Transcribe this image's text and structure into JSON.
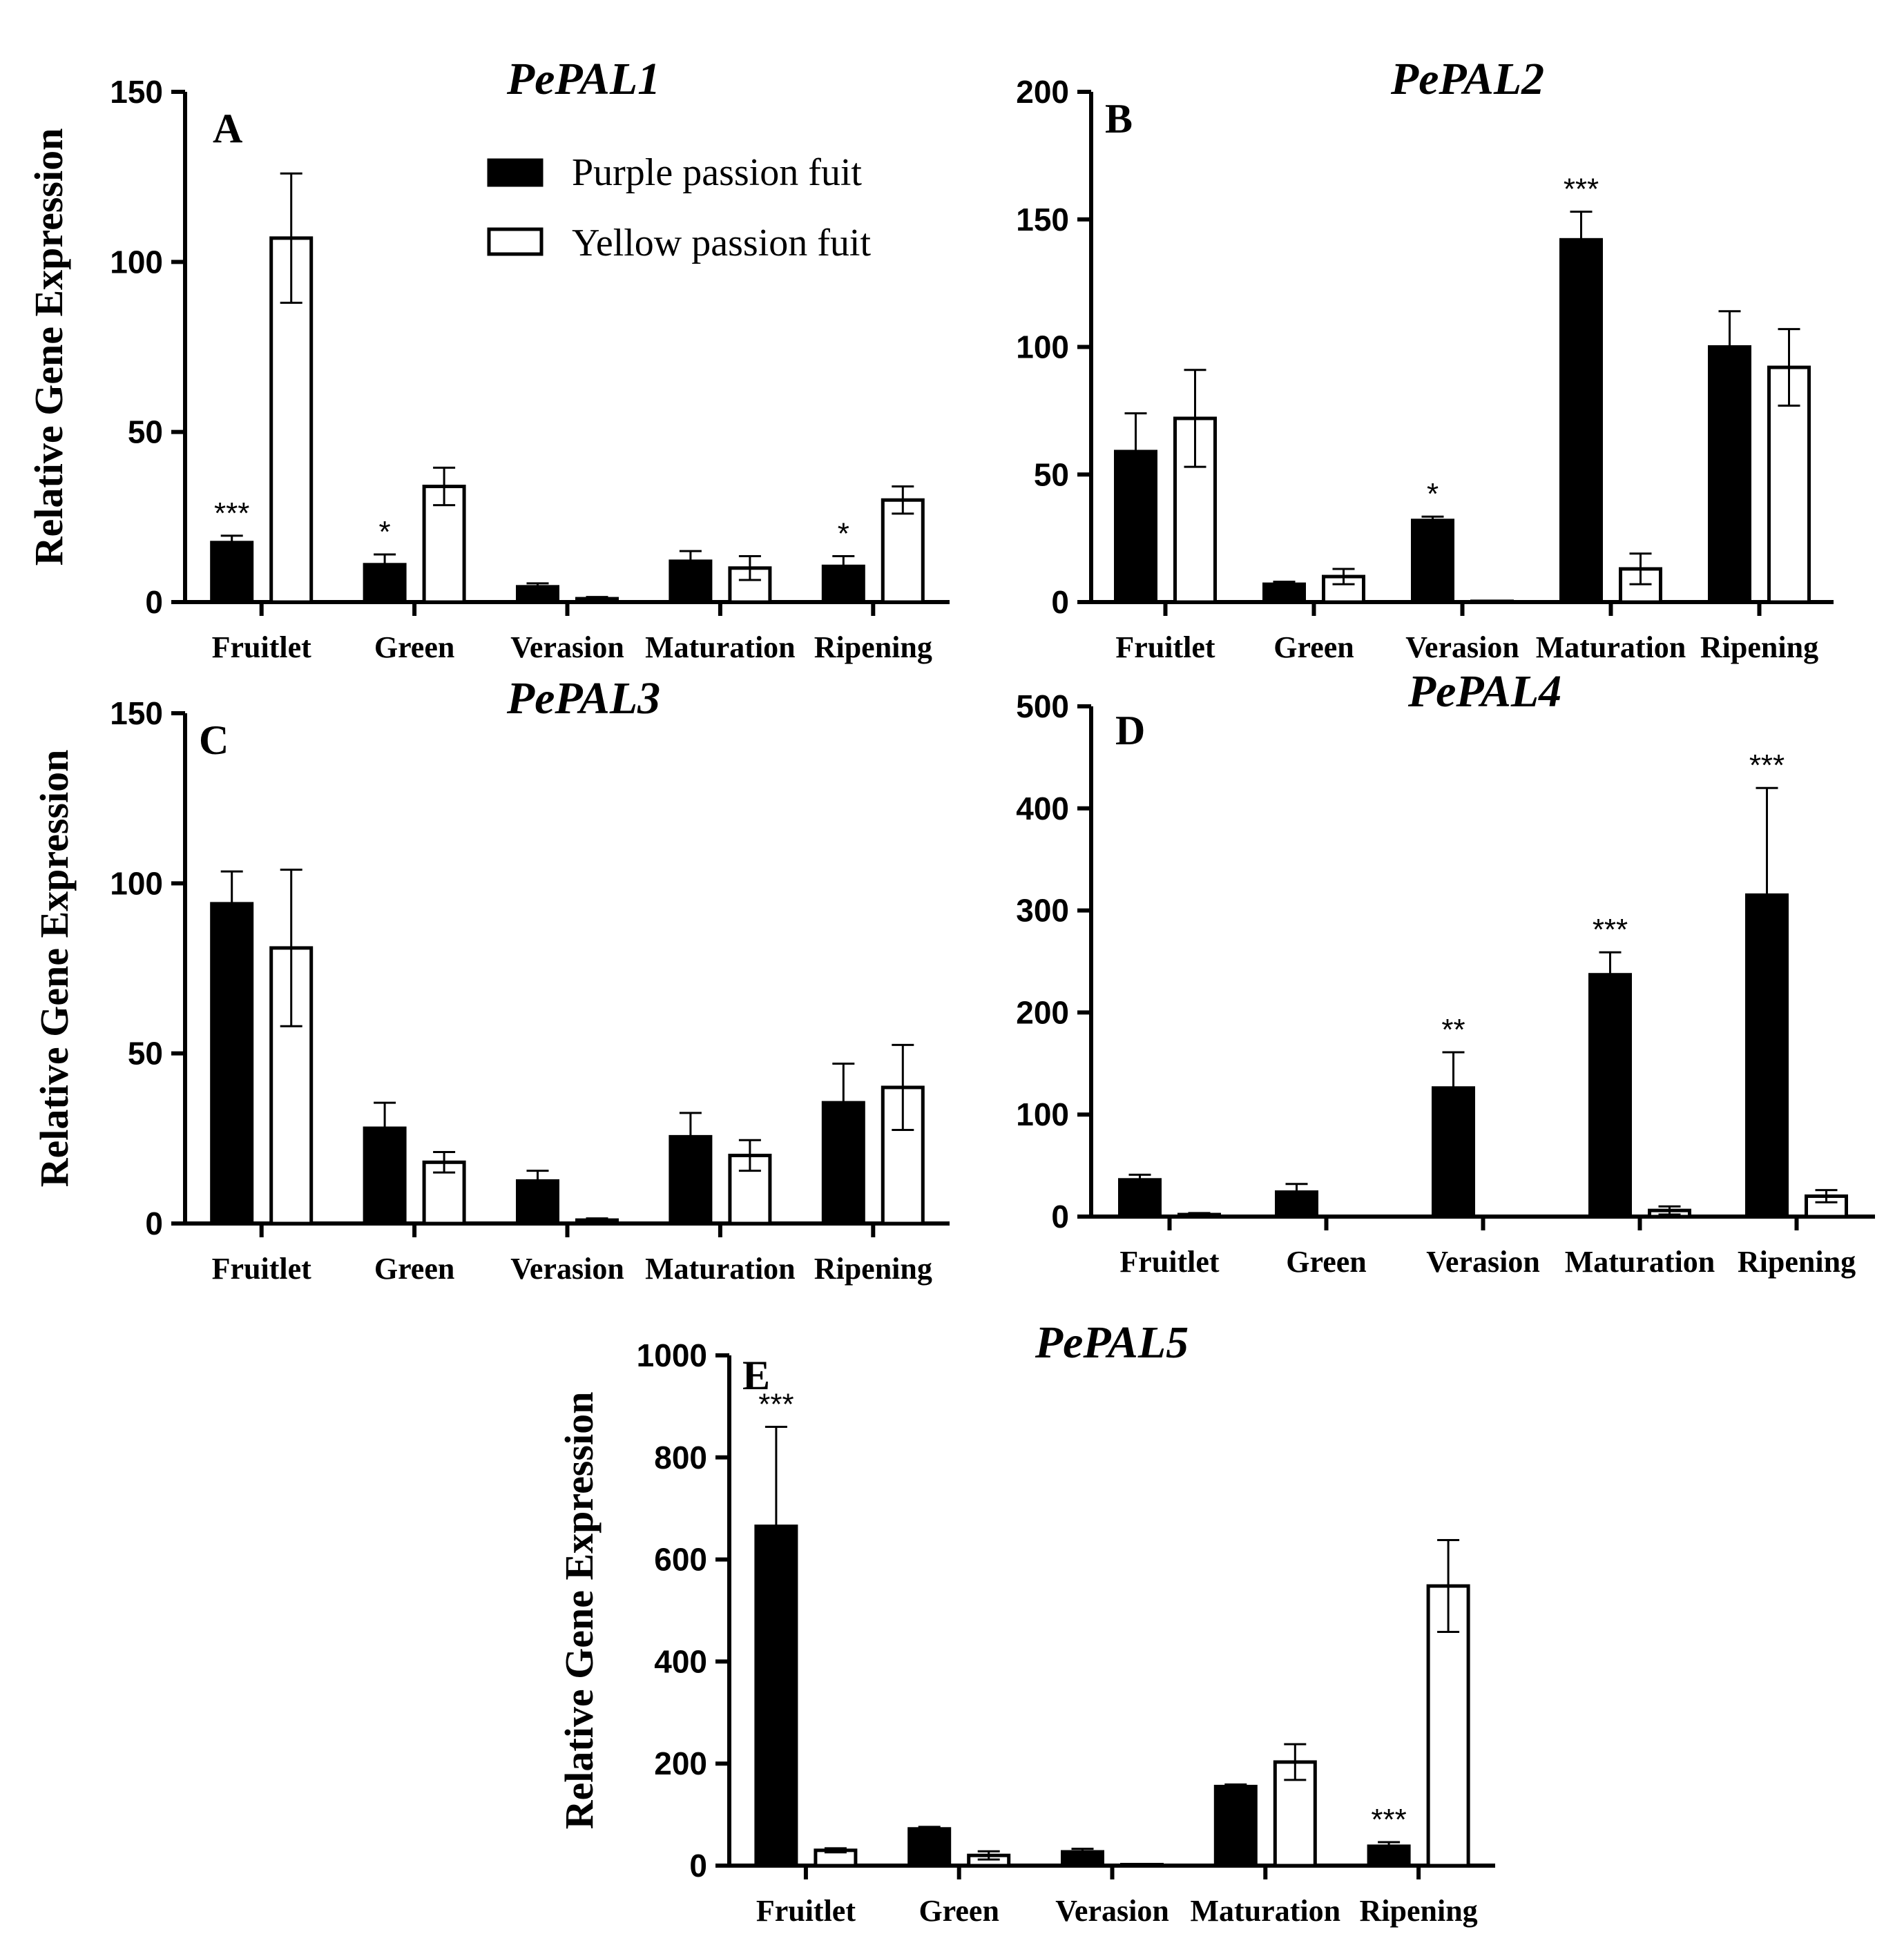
{
  "figure": {
    "legend": [
      {
        "label": "Purple passion fuit",
        "color": "#000000"
      },
      {
        "label": "Yellow passion fuit",
        "color": "#ffffff"
      }
    ]
  },
  "chart_data": [
    {
      "type": "bar",
      "panel": "A",
      "title": "PePAL1",
      "ylabel": "Relative Gene Expression",
      "ylim": [
        0,
        150
      ],
      "yticks": [
        0,
        50,
        100,
        150
      ],
      "categories": [
        "Fruitlet",
        "Green",
        "Verasion",
        "Maturation",
        "Ripening"
      ],
      "series": [
        {
          "name": "Purple passion fuit",
          "values": [
            17.5,
            11,
            4.5,
            12,
            10.5
          ],
          "errors": [
            2,
            3,
            1,
            3,
            3
          ],
          "significance": [
            "***",
            "*",
            "",
            "",
            "*"
          ]
        },
        {
          "name": "Yellow passion fuit",
          "values": [
            107,
            34,
            1,
            10,
            30
          ],
          "errors": [
            19,
            5.5,
            0.5,
            3.5,
            4
          ]
        }
      ]
    },
    {
      "type": "bar",
      "panel": "B",
      "title": "PePAL2",
      "ylabel": "",
      "ylim": [
        0,
        200
      ],
      "yticks": [
        0,
        50,
        100,
        150,
        200
      ],
      "categories": [
        "Fruitlet",
        "Green",
        "Verasion",
        "Maturation",
        "Ripening"
      ],
      "series": [
        {
          "name": "Purple passion fuit",
          "values": [
            59,
            7,
            32,
            142,
            100
          ],
          "errors": [
            15,
            1,
            1.5,
            11,
            14
          ],
          "significance": [
            "",
            "",
            "*",
            "***",
            ""
          ]
        },
        {
          "name": "Yellow passion fuit",
          "values": [
            72,
            10,
            0.3,
            13,
            92
          ],
          "errors": [
            19,
            3,
            0.2,
            6,
            15
          ]
        }
      ]
    },
    {
      "type": "bar",
      "panel": "C",
      "title": "PePAL3",
      "ylabel": "Relative Gene Expression",
      "ylim": [
        0,
        150
      ],
      "yticks": [
        0,
        50,
        100,
        150
      ],
      "categories": [
        "Fruitlet",
        "Green",
        "Verasion",
        "Maturation",
        "Ripening"
      ],
      "series": [
        {
          "name": "Purple passion fuit",
          "values": [
            94,
            28,
            12.5,
            25.5,
            35.5
          ],
          "errors": [
            9.5,
            7.5,
            3,
            7,
            11.5
          ],
          "significance": [
            "",
            "",
            "",
            "",
            ""
          ]
        },
        {
          "name": "Yellow passion fuit",
          "values": [
            81,
            18,
            1,
            20,
            40
          ],
          "errors": [
            23,
            3,
            0.5,
            4.5,
            12.5
          ]
        }
      ]
    },
    {
      "type": "bar",
      "panel": "D",
      "title": "PePAL4",
      "ylabel": "",
      "ylim": [
        0,
        500
      ],
      "yticks": [
        0,
        100,
        200,
        300,
        400,
        500
      ],
      "categories": [
        "Fruitlet",
        "Green",
        "Verasion",
        "Maturation",
        "Ripening"
      ],
      "series": [
        {
          "name": "Purple passion fuit",
          "values": [
            36,
            24,
            126,
            237,
            315
          ],
          "errors": [
            5,
            8,
            35,
            22,
            105
          ],
          "significance": [
            "",
            "",
            "**",
            "***",
            "***"
          ]
        },
        {
          "name": "Yellow passion fuit",
          "values": [
            2,
            0,
            0,
            6,
            20
          ],
          "errors": [
            1.5,
            0,
            0,
            4,
            6
          ]
        }
      ]
    },
    {
      "type": "bar",
      "panel": "E",
      "title": "PePAL5",
      "ylabel": "Relative Gene Expression",
      "ylim": [
        0,
        1000
      ],
      "yticks": [
        0,
        200,
        400,
        600,
        800,
        1000
      ],
      "categories": [
        "Fruitlet",
        "Green",
        "Verasion",
        "Maturation",
        "Ripening"
      ],
      "series": [
        {
          "name": "Purple passion fuit",
          "values": [
            665,
            72,
            27,
            155,
            38
          ],
          "errors": [
            195,
            4,
            6,
            4,
            8
          ],
          "significance": [
            "***",
            "",
            "",
            "",
            "***"
          ]
        },
        {
          "name": "Yellow passion fuit",
          "values": [
            30,
            20,
            2,
            203,
            548
          ],
          "errors": [
            4,
            8,
            1,
            35,
            90
          ]
        }
      ]
    }
  ]
}
